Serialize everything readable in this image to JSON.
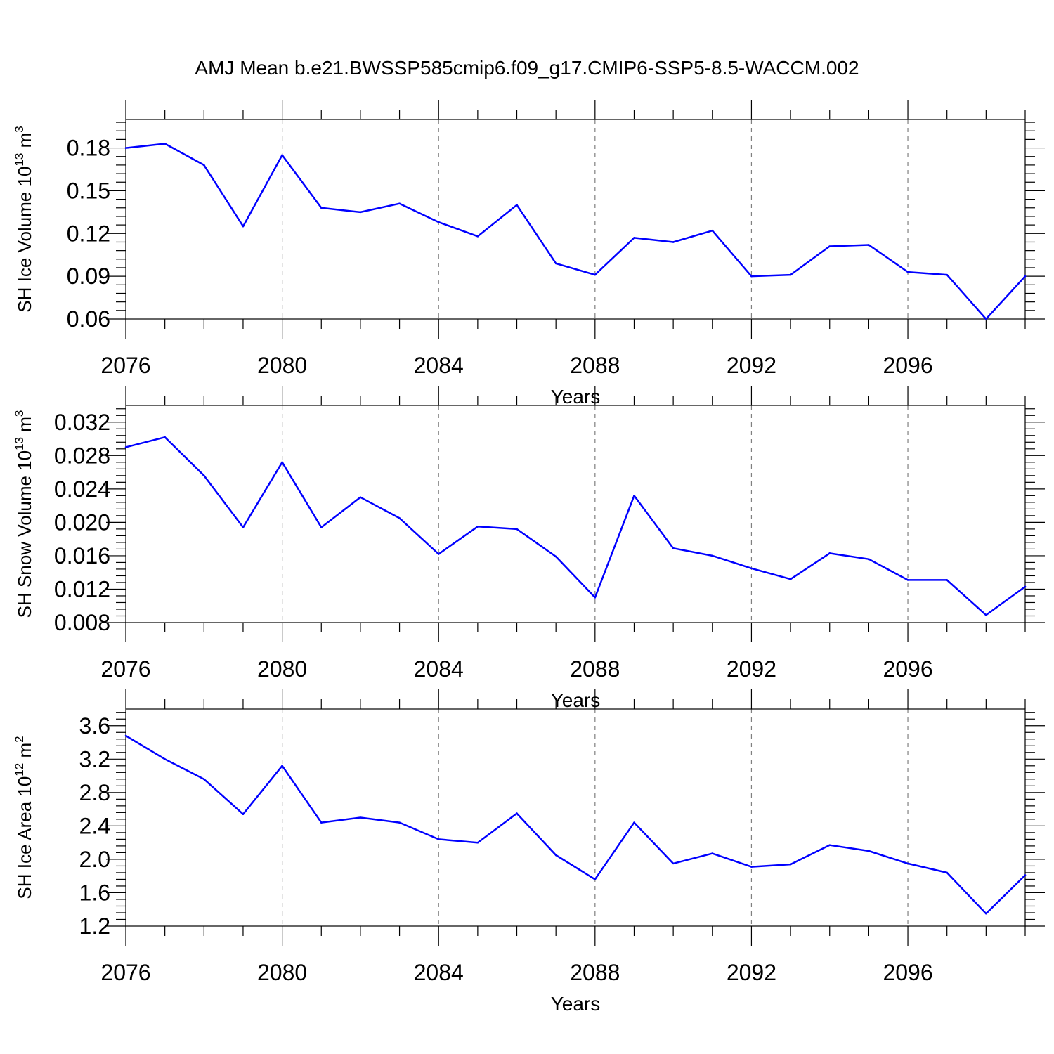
{
  "title": "AMJ Mean b.e21.BWSSP585cmip6.f09_g17.CMIP6-SSP5-8.5-WACCM.002",
  "colors": {
    "line": "#0000ff",
    "axes": "#000000",
    "grid": "#808080"
  },
  "chart_data": [
    {
      "type": "line",
      "xlabel": "Years",
      "ylabel": {
        "text": "SH Ice Volume 10",
        "exp": "13",
        "unit": " m",
        "unit_exp": "3"
      },
      "xlim": [
        2076,
        2099
      ],
      "ylim": [
        0.06,
        0.2
      ],
      "x_ticks": [
        "2076",
        "2080",
        "2084",
        "2088",
        "2092",
        "2096"
      ],
      "y_ticks": [
        "0.06",
        "0.09",
        "0.12",
        "0.15",
        "0.18"
      ],
      "grid": "vertical dashed at major x ticks",
      "x": [
        2076,
        2077,
        2078,
        2079,
        2080,
        2081,
        2082,
        2083,
        2084,
        2085,
        2086,
        2087,
        2088,
        2089,
        2090,
        2091,
        2092,
        2093,
        2094,
        2095,
        2096,
        2097,
        2098,
        2099
      ],
      "values": [
        0.18,
        0.183,
        0.168,
        0.125,
        0.175,
        0.138,
        0.135,
        0.141,
        0.128,
        0.118,
        0.14,
        0.099,
        0.091,
        0.117,
        0.114,
        0.122,
        0.09,
        0.091,
        0.111,
        0.112,
        0.093,
        0.091,
        0.06,
        0.09
      ]
    },
    {
      "type": "line",
      "xlabel": "Years",
      "ylabel": {
        "text": "SH Snow Volume 10",
        "exp": "13",
        "unit": " m",
        "unit_exp": "3"
      },
      "xlim": [
        2076,
        2099
      ],
      "ylim": [
        0.008,
        0.034
      ],
      "x_ticks": [
        "2076",
        "2080",
        "2084",
        "2088",
        "2092",
        "2096"
      ],
      "y_ticks": [
        "0.008",
        "0.012",
        "0.016",
        "0.020",
        "0.024",
        "0.028",
        "0.032"
      ],
      "grid": "vertical dashed at major x ticks",
      "x": [
        2076,
        2077,
        2078,
        2079,
        2080,
        2081,
        2082,
        2083,
        2084,
        2085,
        2086,
        2087,
        2088,
        2089,
        2090,
        2091,
        2092,
        2093,
        2094,
        2095,
        2096,
        2097,
        2098,
        2099
      ],
      "values": [
        0.029,
        0.0302,
        0.0256,
        0.0194,
        0.0272,
        0.0194,
        0.023,
        0.0205,
        0.0162,
        0.0195,
        0.0192,
        0.0159,
        0.011,
        0.0232,
        0.0169,
        0.016,
        0.0145,
        0.0132,
        0.0163,
        0.0156,
        0.0131,
        0.0131,
        0.0089,
        0.0123
      ]
    },
    {
      "type": "line",
      "xlabel": "Years",
      "ylabel": {
        "text": "SH Ice Area 10",
        "exp": "12",
        "unit": " m",
        "unit_exp": "2"
      },
      "xlim": [
        2076,
        2099
      ],
      "ylim": [
        1.2,
        3.8
      ],
      "x_ticks": [
        "2076",
        "2080",
        "2084",
        "2088",
        "2092",
        "2096"
      ],
      "y_ticks": [
        "1.2",
        "1.6",
        "2.0",
        "2.4",
        "2.8",
        "3.2",
        "3.6"
      ],
      "grid": "vertical dashed at major x ticks",
      "x": [
        2076,
        2077,
        2078,
        2079,
        2080,
        2081,
        2082,
        2083,
        2084,
        2085,
        2086,
        2087,
        2088,
        2089,
        2090,
        2091,
        2092,
        2093,
        2094,
        2095,
        2096,
        2097,
        2098,
        2099
      ],
      "values": [
        3.48,
        3.2,
        2.96,
        2.54,
        3.12,
        2.44,
        2.5,
        2.44,
        2.24,
        2.2,
        2.55,
        2.05,
        1.76,
        2.44,
        1.95,
        2.07,
        1.91,
        1.94,
        2.17,
        2.1,
        1.95,
        1.84,
        1.35,
        1.81
      ]
    }
  ]
}
